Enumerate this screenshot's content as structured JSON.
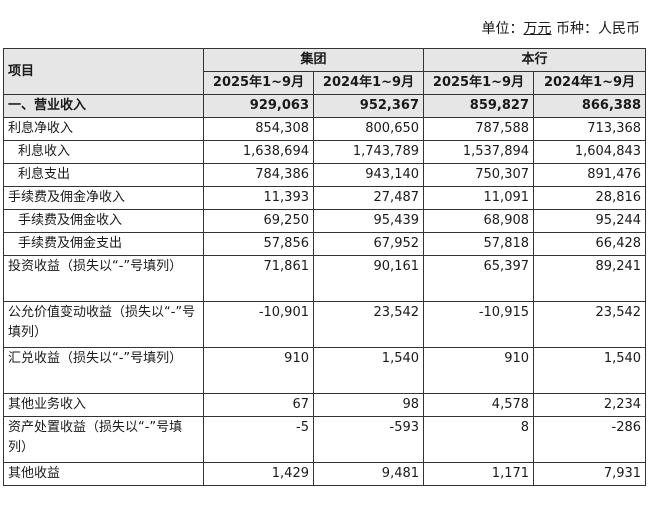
{
  "unit_line": {
    "unit_prefix": "单位：",
    "unit_value": "万元",
    "currency_text": " 币种：人民币"
  },
  "table": {
    "header": {
      "item": "项目",
      "group": "集团",
      "bank": "本行",
      "p1": "2025年1~9月",
      "p2": "2024年1~9月",
      "p3": "2025年1~9月",
      "p4": "2024年1~9月"
    },
    "rows": [
      {
        "label": "一、营业收入",
        "v": [
          "929,063",
          "952,367",
          "859,827",
          "866,388"
        ]
      },
      {
        "label": "利息净收入",
        "v": [
          "854,308",
          "800,650",
          "787,588",
          "713,368"
        ]
      },
      {
        "label": "利息收入",
        "v": [
          "1,638,694",
          "1,743,789",
          "1,537,894",
          "1,604,843"
        ]
      },
      {
        "label": "利息支出",
        "v": [
          "784,386",
          "943,140",
          "750,307",
          "891,476"
        ]
      },
      {
        "label": "手续费及佣金净收入",
        "v": [
          "11,393",
          "27,487",
          "11,091",
          "28,816"
        ]
      },
      {
        "label": "手续费及佣金收入",
        "v": [
          "69,250",
          "95,439",
          "68,908",
          "95,244"
        ]
      },
      {
        "label": "手续费及佣金支出",
        "v": [
          "57,856",
          "67,952",
          "57,818",
          "66,428"
        ]
      },
      {
        "label": "投资收益（损失以“-”号填列）",
        "v": [
          "71,861",
          "90,161",
          "65,397",
          "89,241"
        ]
      },
      {
        "label": "公允价值变动收益（损失以“-”号填列）",
        "v": [
          "-10,901",
          "23,542",
          "-10,915",
          "23,542"
        ]
      },
      {
        "label": "汇兑收益（损失以“-”号填列）",
        "v": [
          "910",
          "1,540",
          "910",
          "1,540"
        ]
      },
      {
        "label": "其他业务收入",
        "v": [
          "67",
          "98",
          "4,578",
          "2,234"
        ]
      },
      {
        "label": "资产处置收益（损失以“-”号填列）",
        "v": [
          "-5",
          "-593",
          "8",
          "-286"
        ]
      },
      {
        "label": "其他收益",
        "v": [
          "1,429",
          "9,481",
          "1,171",
          "7,931"
        ]
      }
    ]
  }
}
